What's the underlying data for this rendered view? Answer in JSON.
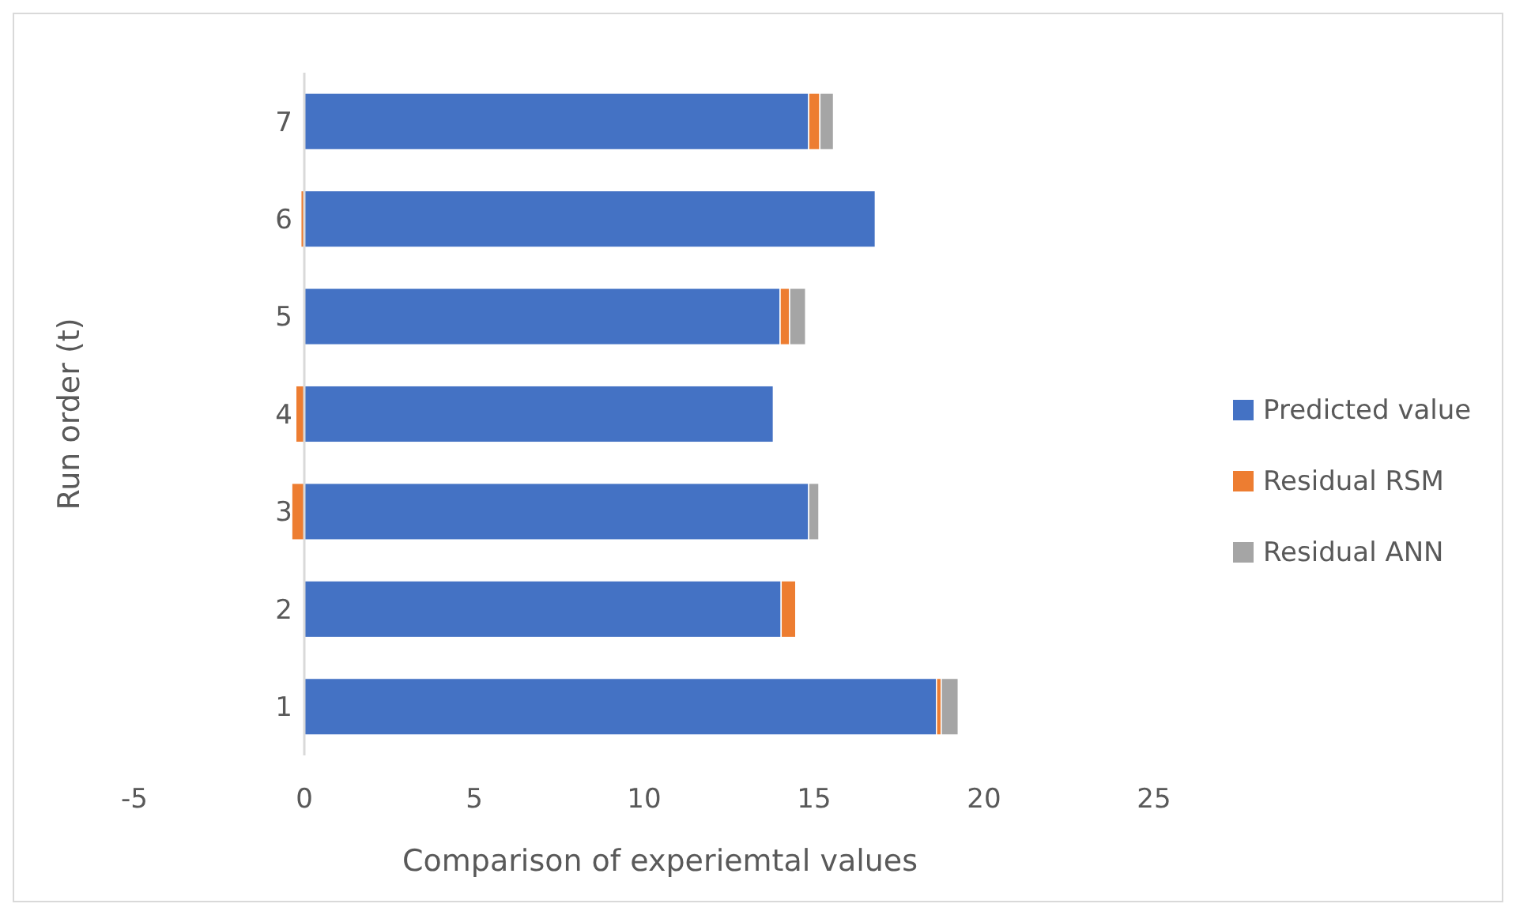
{
  "chart_data": {
    "type": "bar",
    "orientation": "horizontal",
    "stacked": true,
    "xlabel": "Comparison of experiemtal values",
    "ylabel": "Run order (t)",
    "categories": [
      "7",
      "6",
      "5",
      "4",
      "3",
      "2",
      "1"
    ],
    "series": [
      {
        "name": "Predicted value",
        "color": "#4472c4",
        "values": [
          14.84,
          16.8,
          14.0,
          13.8,
          14.84,
          14.03,
          18.6
        ]
      },
      {
        "name": "Residual RSM",
        "color": "#ed7d31",
        "values": [
          0.33,
          -0.1,
          0.28,
          -0.25,
          -0.37,
          0.43,
          0.14
        ]
      },
      {
        "name": "Residual ANN",
        "color": "#a5a5a5",
        "values": [
          0.4,
          0,
          0.47,
          0,
          0.3,
          0,
          0.5
        ]
      }
    ],
    "xlim": [
      -5,
      25
    ],
    "xticks": [
      -5,
      0,
      5,
      10,
      15,
      20,
      25
    ],
    "grid": false,
    "legend": "right"
  }
}
